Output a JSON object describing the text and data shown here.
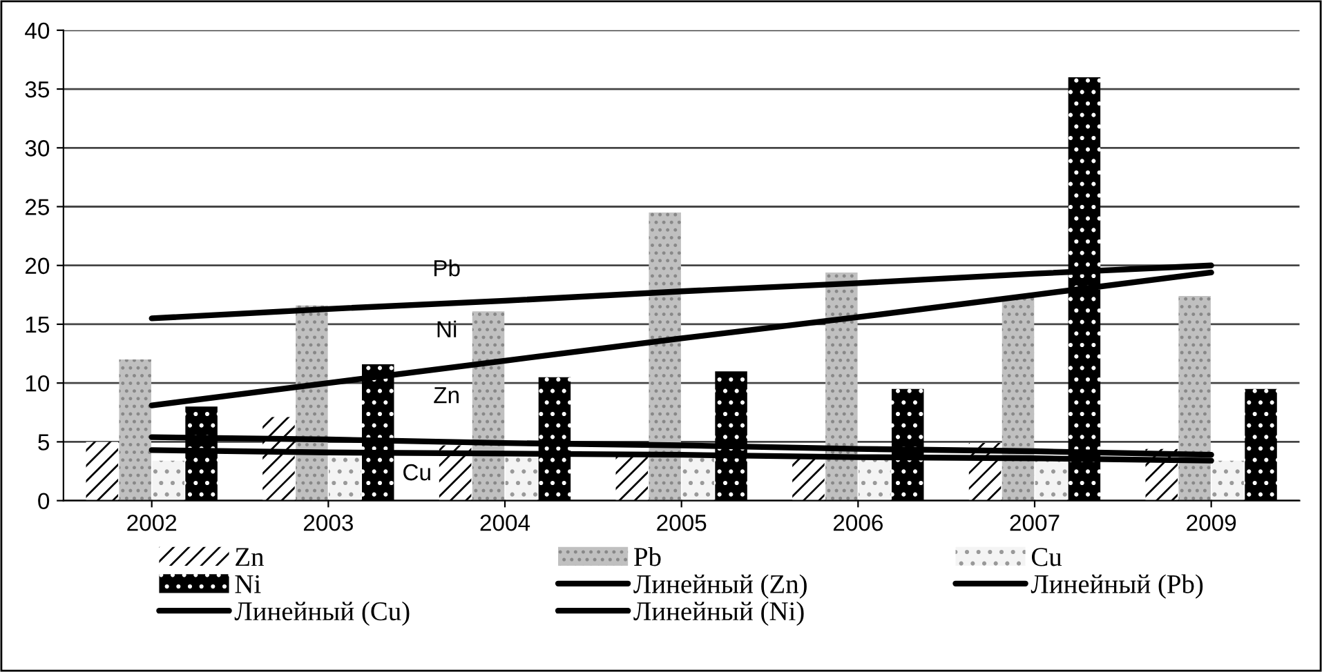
{
  "chart_data": {
    "type": "bar",
    "categories": [
      "2002",
      "2003",
      "2004",
      "2005",
      "2006",
      "2007",
      "2009"
    ],
    "series": [
      {
        "name": "Zn",
        "color": "#ffffff",
        "values": [
          5.0,
          7.1,
          4.7,
          3.8,
          3.8,
          4.9,
          4.4
        ]
      },
      {
        "name": "Pb",
        "color": "#c0c0c0",
        "values": [
          12.0,
          16.6,
          16.1,
          24.5,
          19.4,
          17.3,
          17.4
        ]
      },
      {
        "name": "Cu",
        "color": "#f4f4f4",
        "values": [
          3.4,
          3.7,
          3.7,
          3.6,
          3.6,
          3.5,
          3.4
        ]
      },
      {
        "name": "Ni",
        "color": "#000000",
        "values": [
          8.0,
          11.6,
          10.5,
          11.0,
          9.5,
          36.0,
          9.5
        ]
      },
      {
        "name": "Линейный (Zn)",
        "type": "line",
        "color": "#000000",
        "values": [
          5.4,
          5.2,
          4.9,
          4.7,
          4.4,
          4.2,
          3.9
        ]
      },
      {
        "name": "Линейный (Pb)",
        "type": "line",
        "color": "#000000",
        "values": [
          15.5,
          16.3,
          17.0,
          17.8,
          18.5,
          19.3,
          20.0
        ]
      },
      {
        "name": "Линейный (Cu)",
        "type": "line",
        "color": "#000000",
        "values": [
          4.3,
          4.1,
          4.0,
          3.9,
          3.7,
          3.6,
          3.4
        ]
      },
      {
        "name": "Линейный (Ni)",
        "type": "line",
        "color": "#000000",
        "values": [
          8.1,
          10.0,
          11.9,
          13.8,
          15.6,
          17.5,
          19.4
        ]
      }
    ],
    "ylim": [
      0,
      40
    ],
    "yticks": [
      0,
      5,
      10,
      15,
      20,
      25,
      30,
      35,
      40
    ],
    "grid": "y",
    "legend": "bottom",
    "annotations": [
      "Pb",
      "Ni",
      "Zn",
      "Cu"
    ]
  }
}
